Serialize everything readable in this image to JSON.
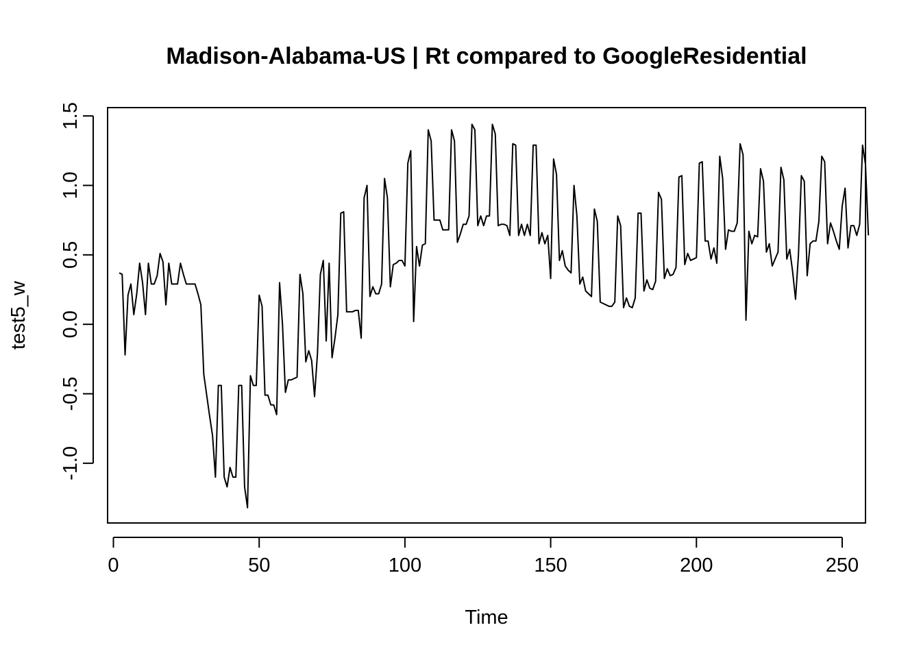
{
  "chart_data": {
    "type": "line",
    "title": "Madison-Alabama-US | Rt compared to GoogleResidential",
    "xlabel": "Time",
    "ylabel": "test5_w",
    "xlim": [
      -2,
      258
    ],
    "ylim": [
      -1.43,
      1.56
    ],
    "x_ticks": [
      0,
      50,
      100,
      150,
      200,
      250
    ],
    "x_tick_labels": [
      "0",
      "50",
      "100",
      "150",
      "200",
      "250"
    ],
    "y_ticks": [
      -1.0,
      -0.5,
      0.0,
      0.5,
      1.0,
      1.5
    ],
    "y_tick_labels": [
      "-1.0",
      "-0.5",
      "0.0",
      "0.5",
      "1.0",
      "1.5"
    ],
    "grid": false,
    "legend": "none",
    "line_color": "#000000",
    "series": [
      {
        "x_start": 2,
        "values": [
          0.37,
          0.36,
          -0.22,
          0.21,
          0.29,
          0.07,
          0.22,
          0.44,
          0.3,
          0.07,
          0.44,
          0.29,
          0.29,
          0.35,
          0.51,
          0.45,
          0.14,
          0.44,
          0.29,
          0.29,
          0.29,
          0.44,
          0.36,
          0.29,
          0.29,
          0.29,
          0.29,
          0.22,
          0.14,
          -0.36,
          -0.51,
          -0.66,
          -0.8,
          -1.1,
          -0.44,
          -0.44,
          -1.1,
          -1.17,
          -1.03,
          -1.1,
          -1.1,
          -0.44,
          -0.44,
          -1.17,
          -1.32,
          -0.37,
          -0.44,
          -0.44,
          0.21,
          0.13,
          -0.51,
          -0.51,
          -0.58,
          -0.58,
          -0.65,
          0.3,
          0.0,
          -0.49,
          -0.4,
          -0.4,
          -0.39,
          -0.38,
          0.36,
          0.22,
          -0.27,
          -0.19,
          -0.26,
          -0.52,
          -0.21,
          0.36,
          0.46,
          -0.12,
          0.44,
          -0.24,
          -0.1,
          0.07,
          0.8,
          0.81,
          0.09,
          0.09,
          0.09,
          0.1,
          0.1,
          -0.1,
          0.91,
          1.0,
          0.2,
          0.27,
          0.22,
          0.22,
          0.29,
          1.05,
          0.91,
          0.27,
          0.43,
          0.44,
          0.46,
          0.46,
          0.42,
          1.16,
          1.25,
          0.02,
          0.56,
          0.42,
          0.57,
          0.58,
          1.4,
          1.32,
          0.75,
          0.75,
          0.75,
          0.68,
          0.68,
          0.68,
          1.4,
          1.32,
          0.59,
          0.65,
          0.72,
          0.72,
          0.78,
          1.44,
          1.4,
          0.71,
          0.78,
          0.71,
          0.78,
          0.78,
          1.44,
          1.37,
          0.71,
          0.72,
          0.72,
          0.71,
          0.64,
          1.3,
          1.29,
          0.64,
          0.72,
          0.64,
          0.72,
          0.64,
          1.29,
          1.29,
          0.58,
          0.66,
          0.58,
          0.64,
          0.33,
          1.19,
          1.08,
          0.46,
          0.53,
          0.42,
          0.39,
          0.37,
          1.0,
          0.78,
          0.29,
          0.34,
          0.24,
          0.22,
          0.2,
          0.83,
          0.74,
          0.16,
          0.15,
          0.14,
          0.13,
          0.13,
          0.16,
          0.78,
          0.71,
          0.12,
          0.19,
          0.13,
          0.12,
          0.19,
          0.8,
          0.8,
          0.24,
          0.32,
          0.26,
          0.25,
          0.31,
          0.95,
          0.9,
          0.33,
          0.4,
          0.35,
          0.36,
          0.41,
          1.06,
          1.07,
          0.43,
          0.51,
          0.46,
          0.47,
          0.48,
          1.16,
          1.17,
          0.6,
          0.6,
          0.47,
          0.55,
          0.44,
          1.21,
          1.05,
          0.54,
          0.68,
          0.67,
          0.67,
          0.73,
          1.3,
          1.22,
          0.03,
          0.67,
          0.58,
          0.64,
          0.63,
          1.12,
          1.03,
          0.52,
          0.58,
          0.42,
          0.47,
          0.52,
          1.13,
          1.04,
          0.47,
          0.54,
          0.38,
          0.18,
          0.5,
          1.07,
          1.03,
          0.35,
          0.58,
          0.6,
          0.6,
          0.74,
          1.21,
          1.17,
          0.58,
          0.73,
          0.67,
          0.6,
          0.54,
          0.85,
          0.98,
          0.55,
          0.71,
          0.71,
          0.64,
          0.72,
          1.29,
          1.15,
          0.64
        ]
      }
    ]
  }
}
